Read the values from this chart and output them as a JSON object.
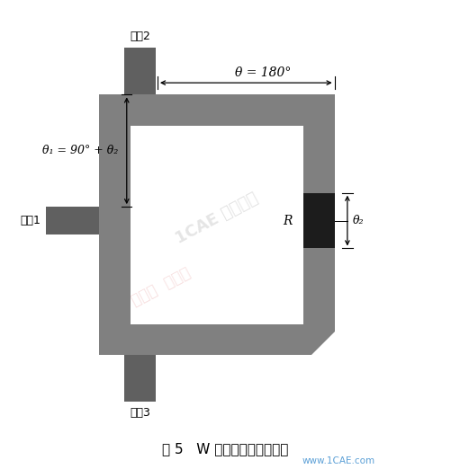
{
  "bg_color": "#ffffff",
  "shape_color": "#808080",
  "shape_dark": "#606060",
  "line_color": "#000000",
  "text_color": "#000000",
  "fig_width": 5.01,
  "fig_height": 5.22,
  "dpi": 100,
  "caption": "图 5   W 波段功分器设计模型",
  "watermark_text1": "www.1CAE.com",
  "label_port1": "端口1",
  "label_port2": "端口2",
  "label_port3": "端口3",
  "label_theta": "θ = 180°",
  "label_theta1": "θ₁ = 90° + θ₂",
  "label_theta2": "θ₂",
  "label_R": "R"
}
